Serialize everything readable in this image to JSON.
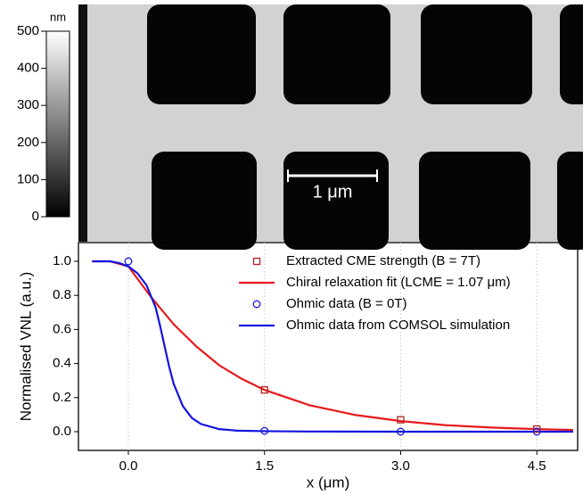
{
  "image": {
    "colorbar_unit": "nm",
    "colorbar_lim": [
      0,
      500
    ],
    "colorbar_ticks": [
      0,
      100,
      200,
      300,
      400,
      500
    ],
    "scale_bar": "1 μm"
  },
  "chart_data": {
    "type": "line",
    "xlabel": "x (μm)",
    "ylabel": "Normalised VNL (a.u.)",
    "xlim": [
      -0.55,
      4.95
    ],
    "ylim": [
      -0.11,
      1.11
    ],
    "xticks": [
      {
        "value": 0,
        "label": "0.0"
      },
      1.5,
      {
        "value": 3,
        "label": "3.0"
      },
      4.5
    ],
    "yticks": [
      {
        "value": 0,
        "label": "0.0"
      },
      0.2,
      0.4,
      0.6,
      0.8,
      {
        "value": 1,
        "label": "1.0"
      }
    ],
    "grid": true,
    "legend": "upper right",
    "series": [
      {
        "name": "Extracted CME strength (B = 7T)",
        "color": "#b22222",
        "style": "square",
        "x": [
          1.5,
          3.0,
          4.5
        ],
        "values": [
          0.245,
          0.07,
          0.015
        ]
      },
      {
        "name": "Chiral relaxation fit (LCME = 1.07 μm)",
        "color": "#e8191c",
        "style": "line",
        "x": [
          -0.4,
          -0.2,
          0,
          0.25,
          0.5,
          0.75,
          1.0,
          1.25,
          1.5,
          2.0,
          2.5,
          3.0,
          3.5,
          4.0,
          4.5,
          4.9
        ],
        "values": [
          1.0,
          1.0,
          0.97,
          0.79,
          0.63,
          0.5,
          0.39,
          0.31,
          0.245,
          0.155,
          0.098,
          0.062,
          0.038,
          0.024,
          0.015,
          0.01
        ]
      },
      {
        "name": "Ohmic data (B = 0T)",
        "color": "#1a1adc",
        "style": "circle",
        "x": [
          0,
          1.5,
          3.0,
          4.5
        ],
        "values": [
          1.0,
          0.005,
          0.0,
          0.0
        ]
      },
      {
        "name": "Ohmic data from COMSOL simulation",
        "color": "#1414e0",
        "style": "line",
        "x": [
          -0.4,
          -0.2,
          -0.1,
          0,
          0.1,
          0.2,
          0.3,
          0.35,
          0.4,
          0.45,
          0.5,
          0.6,
          0.7,
          0.8,
          1.0,
          1.2,
          1.5,
          2.0,
          3.0,
          4.9
        ],
        "values": [
          1.0,
          1.0,
          0.99,
          0.97,
          0.93,
          0.86,
          0.73,
          0.62,
          0.5,
          0.38,
          0.28,
          0.15,
          0.08,
          0.045,
          0.015,
          0.006,
          0.003,
          0.001,
          0,
          0
        ]
      }
    ]
  }
}
